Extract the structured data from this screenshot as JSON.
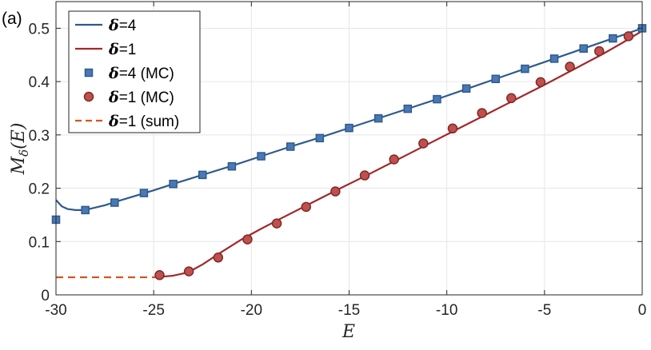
{
  "chart_data": {
    "type": "line",
    "panel_label": "(a)",
    "xlabel": "E",
    "ylabel": "M_δ(E)",
    "ylabel_main": "M",
    "ylabel_sub": "δ",
    "ylabel_arg": "(E)",
    "xlim": [
      -30,
      0
    ],
    "ylim": [
      0,
      0.55
    ],
    "xticks": [
      -30,
      -25,
      -20,
      -15,
      -10,
      -5,
      0
    ],
    "yticks": [
      0,
      0.1,
      0.2,
      0.3,
      0.4,
      0.5
    ],
    "xtick_labels": [
      "-30",
      "-25",
      "-20",
      "-15",
      "-10",
      "-5",
      "0"
    ],
    "ytick_labels": [
      "0",
      "0.1",
      "0.2",
      "0.3",
      "0.4",
      "0.5"
    ],
    "grid": true,
    "legend_placement": "top-left",
    "series": [
      {
        "name": "δ=4",
        "legend_symbol": "δ",
        "legend_suffix": "=4",
        "style": "line",
        "color": "#2E5A8C",
        "x": [
          -30,
          -29.7,
          -29.4,
          -29,
          -28.7,
          -28.3,
          -27.5,
          -27,
          -26,
          -25,
          -24,
          -22.5,
          -21,
          -19.5,
          -18,
          -16.5,
          -15,
          -13.5,
          -12,
          -10.5,
          -9,
          -7.5,
          -6,
          -4.5,
          -3,
          -1.5,
          0
        ],
        "y": [
          0.178,
          0.166,
          0.161,
          0.159,
          0.159,
          0.161,
          0.168,
          0.174,
          0.185,
          0.196,
          0.208,
          0.225,
          0.242,
          0.26,
          0.278,
          0.295,
          0.313,
          0.331,
          0.349,
          0.367,
          0.386,
          0.405,
          0.424,
          0.443,
          0.462,
          0.481,
          0.5
        ]
      },
      {
        "name": "δ=1",
        "legend_symbol": "δ",
        "legend_suffix": "=1",
        "style": "line",
        "color": "#A3282B",
        "x": [
          -24.6,
          -24,
          -23.5,
          -23,
          -22.5,
          -22,
          -21.5,
          -20.5,
          -19.5,
          -18.5,
          -17,
          -15.5,
          -14,
          -12.5,
          -11,
          -9.5,
          -8,
          -6.5,
          -5,
          -3.5,
          -2,
          -1,
          0
        ],
        "y": [
          0.034,
          0.036,
          0.04,
          0.047,
          0.057,
          0.069,
          0.081,
          0.104,
          0.124,
          0.143,
          0.171,
          0.199,
          0.226,
          0.254,
          0.282,
          0.31,
          0.338,
          0.366,
          0.394,
          0.423,
          0.452,
          0.473,
          0.495
        ]
      },
      {
        "name": "δ=4 (MC)",
        "legend_symbol": "δ",
        "legend_suffix": "=4 (MC)",
        "style": "square",
        "color": "#4A78B5",
        "edge": "#2E5A8C",
        "x": [
          -30,
          -28.5,
          -27,
          -25.5,
          -24,
          -22.5,
          -21,
          -19.5,
          -18,
          -16.5,
          -15,
          -13.5,
          -12,
          -10.5,
          -9,
          -7.5,
          -6,
          -4.5,
          -3,
          -1.5,
          0
        ],
        "y": [
          0.141,
          0.159,
          0.173,
          0.191,
          0.208,
          0.225,
          0.241,
          0.26,
          0.278,
          0.294,
          0.313,
          0.331,
          0.349,
          0.367,
          0.387,
          0.405,
          0.424,
          0.443,
          0.462,
          0.481,
          0.5
        ]
      },
      {
        "name": "δ=1 (MC)",
        "legend_symbol": "δ",
        "legend_suffix": "=1 (MC)",
        "style": "circle",
        "color": "#C0504D",
        "edge": "#7F2A28",
        "x": [
          -24.7,
          -23.2,
          -21.7,
          -20.2,
          -18.7,
          -17.2,
          -15.7,
          -14.2,
          -12.7,
          -11.2,
          -9.7,
          -8.2,
          -6.7,
          -5.2,
          -3.7,
          -2.2,
          -0.7
        ],
        "y": [
          0.037,
          0.044,
          0.07,
          0.104,
          0.134,
          0.165,
          0.194,
          0.224,
          0.254,
          0.284,
          0.312,
          0.341,
          0.369,
          0.399,
          0.428,
          0.457,
          0.485
        ]
      },
      {
        "name": "δ=1 (sum)",
        "legend_symbol": "δ",
        "legend_suffix": "=1 (sum)",
        "style": "dashed",
        "color": "#D9531E",
        "x": [
          -30,
          -27,
          -25,
          -24.6
        ],
        "y": [
          0.033,
          0.033,
          0.033,
          0.034
        ]
      }
    ]
  }
}
